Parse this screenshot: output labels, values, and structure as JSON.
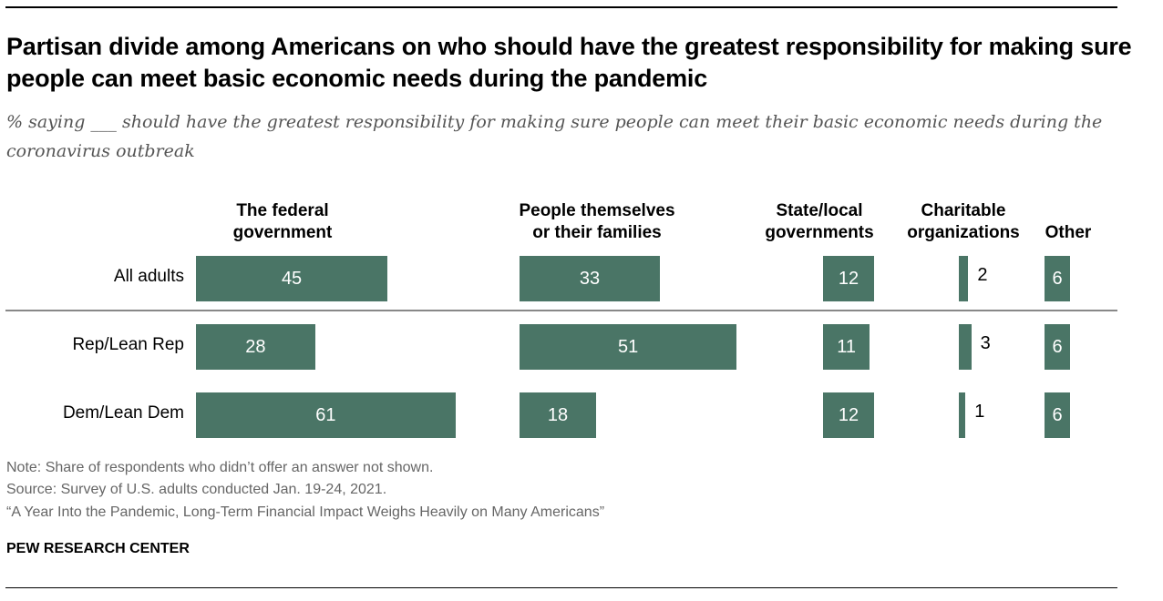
{
  "title": "Partisan divide among Americans on who should have the greatest responsibility for making sure people can meet basic economic needs during the pandemic",
  "subtitle": "% saying ___ should have the greatest responsibility for making sure people can meet their basic economic needs during the coronavirus outbreak",
  "chart_data": {
    "type": "bar",
    "orientation": "horizontal",
    "layout": "small-multiples by column",
    "categories": [
      "All adults",
      "Rep/Lean Rep",
      "Dem/Lean Dem"
    ],
    "series": [
      {
        "name": "The federal government",
        "values": [
          45,
          28,
          61
        ]
      },
      {
        "name": "People themselves or their families",
        "values": [
          33,
          51,
          18
        ]
      },
      {
        "name": "State/local governments",
        "values": [
          12,
          11,
          12
        ]
      },
      {
        "name": "Charitable organizations",
        "values": [
          2,
          3,
          1
        ]
      },
      {
        "name": "Other",
        "values": [
          6,
          6,
          6
        ]
      }
    ],
    "bar_color": "#4a7566",
    "grid": false
  },
  "footer": {
    "note": "Note: Share of respondents who didn’t offer an answer not shown.",
    "source": "Source: Survey of U.S. adults conducted Jan. 19-24, 2021.",
    "report": "“A Year Into the Pandemic, Long-Term Financial Impact Weighs Heavily on Many Americans”",
    "org": "PEW RESEARCH CENTER"
  }
}
